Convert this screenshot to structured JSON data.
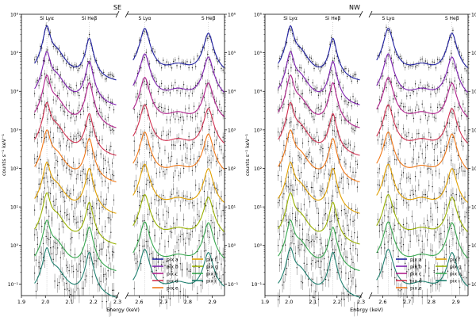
{
  "chart_data": [
    {
      "type": "line",
      "title": "SE",
      "xlabel": "Energy (keV)",
      "ylabel": "counts s⁻¹ keV⁻¹",
      "yscale": "log",
      "ylim": [
        0.05,
        1000000
      ],
      "broken_x_axis": true,
      "xlim_left": [
        1.9,
        2.3
      ],
      "xlim_right": [
        2.55,
        2.95
      ],
      "xticks_left": [
        "1.9",
        "2.0",
        "2.1",
        "2.2",
        "2.3"
      ],
      "xticks_right": [
        "2.6",
        "2.7",
        "2.8",
        "2.9"
      ],
      "yticks": [
        "10⁻¹",
        "10⁰",
        "10¹",
        "10²",
        "10³",
        "10⁴",
        "10⁵",
        "10⁶"
      ],
      "annotations": [
        "Si Lyα",
        "Si Heβ",
        "S Lyα",
        "S Heβ"
      ],
      "reference_lines_keV": [
        2.006,
        2.183,
        2.623,
        2.884
      ],
      "legend_position": "lower right",
      "series": [
        {
          "name": "pix a",
          "color": "#1f1fa0",
          "level": 90000
        },
        {
          "name": "pix b",
          "color": "#7e1fb0",
          "level": 20000
        },
        {
          "name": "pix c",
          "color": "#b0208c",
          "level": 5000
        },
        {
          "name": "pix d",
          "color": "#d03050",
          "level": 1000
        },
        {
          "name": "pix e",
          "color": "#f07818",
          "level": 200
        },
        {
          "name": "pix f",
          "color": "#e0a000",
          "level": 30
        },
        {
          "name": "pix g",
          "color": "#98b000",
          "level": 5
        },
        {
          "name": "pix h",
          "color": "#38a850",
          "level": 1
        },
        {
          "name": "pix i",
          "color": "#208070",
          "level": 0.2
        }
      ]
    },
    {
      "type": "line",
      "title": "NW",
      "xlabel": "Energy (keV)",
      "ylabel": "counts s⁻¹ keV⁻¹",
      "yscale": "log",
      "ylim": [
        0.05,
        1000000
      ],
      "broken_x_axis": true,
      "xlim_left": [
        1.9,
        2.3
      ],
      "xlim_right": [
        2.55,
        2.95
      ],
      "xticks_left": [
        "1.9",
        "2.0",
        "2.1",
        "2.2",
        "2.3"
      ],
      "xticks_right": [
        "2.6",
        "2.7",
        "2.8",
        "2.9"
      ],
      "yticks": [
        "10⁻¹",
        "10⁰",
        "10¹",
        "10²",
        "10³",
        "10⁴",
        "10⁵",
        "10⁶"
      ],
      "annotations": [
        "Si Lyα",
        "Si Heβ",
        "S Lyα",
        "S Heβ"
      ],
      "reference_lines_keV": [
        2.006,
        2.183,
        2.623,
        2.884
      ],
      "legend_position": "lower right",
      "series": [
        {
          "name": "pix a",
          "color": "#1f1fa0",
          "level": 90000
        },
        {
          "name": "pix b",
          "color": "#7e1fb0",
          "level": 20000
        },
        {
          "name": "pix c",
          "color": "#b0208c",
          "level": 5000
        },
        {
          "name": "pix d",
          "color": "#d03050",
          "level": 1000
        },
        {
          "name": "pix e",
          "color": "#f07818",
          "level": 200
        },
        {
          "name": "pix f",
          "color": "#e0a000",
          "level": 30
        },
        {
          "name": "pix g",
          "color": "#98b000",
          "level": 5
        },
        {
          "name": "pix h",
          "color": "#38a850",
          "level": 1
        },
        {
          "name": "pix i",
          "color": "#208070",
          "level": 0.2
        }
      ]
    }
  ]
}
